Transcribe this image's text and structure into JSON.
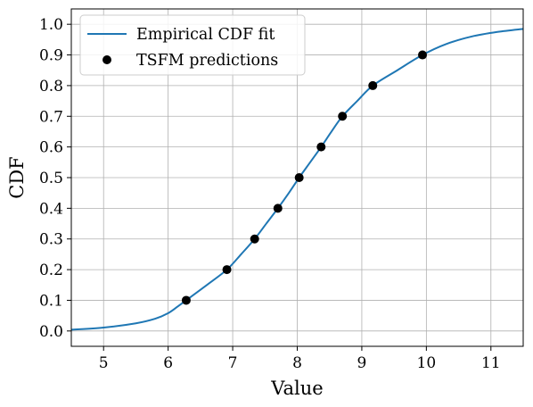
{
  "chart_data": {
    "type": "line",
    "title": "",
    "xlabel": "Value",
    "ylabel": "CDF",
    "xlim": [
      4.5,
      11.5
    ],
    "ylim": [
      -0.05,
      1.05
    ],
    "xticks": [
      5,
      6,
      7,
      8,
      9,
      10,
      11
    ],
    "yticks": [
      0.0,
      0.1,
      0.2,
      0.3,
      0.4,
      0.5,
      0.6,
      0.7,
      0.8,
      0.9,
      1.0
    ],
    "xtick_labels": [
      "5",
      "6",
      "7",
      "8",
      "9",
      "10",
      "11"
    ],
    "ytick_labels": [
      "0.0",
      "0.1",
      "0.2",
      "0.3",
      "0.4",
      "0.5",
      "0.6",
      "0.7",
      "0.8",
      "0.9",
      "1.0"
    ],
    "grid": true,
    "legend_position": "top-left",
    "series": [
      {
        "name": "Empirical CDF fit",
        "kind": "line",
        "color": "#1f77b4",
        "x": [
          4.5,
          5.0,
          5.5,
          5.8,
          6.0,
          6.15,
          6.28,
          6.6,
          6.91,
          7.13,
          7.34,
          7.52,
          7.7,
          7.87,
          8.03,
          8.2,
          8.37,
          8.53,
          8.7,
          8.93,
          9.17,
          9.55,
          9.94,
          10.3,
          10.7,
          11.1,
          11.5
        ],
        "y": [
          0.004,
          0.011,
          0.025,
          0.04,
          0.058,
          0.08,
          0.1,
          0.15,
          0.2,
          0.25,
          0.3,
          0.35,
          0.4,
          0.45,
          0.5,
          0.55,
          0.6,
          0.65,
          0.7,
          0.75,
          0.8,
          0.85,
          0.9,
          0.935,
          0.96,
          0.975,
          0.985
        ]
      },
      {
        "name": "TSFM predictions",
        "kind": "scatter",
        "color": "#000000",
        "x": [
          6.28,
          6.91,
          7.34,
          7.7,
          8.03,
          8.37,
          8.7,
          9.17,
          9.94
        ],
        "y": [
          0.1,
          0.2,
          0.3,
          0.4,
          0.5,
          0.6,
          0.7,
          0.8,
          0.9
        ]
      }
    ]
  }
}
